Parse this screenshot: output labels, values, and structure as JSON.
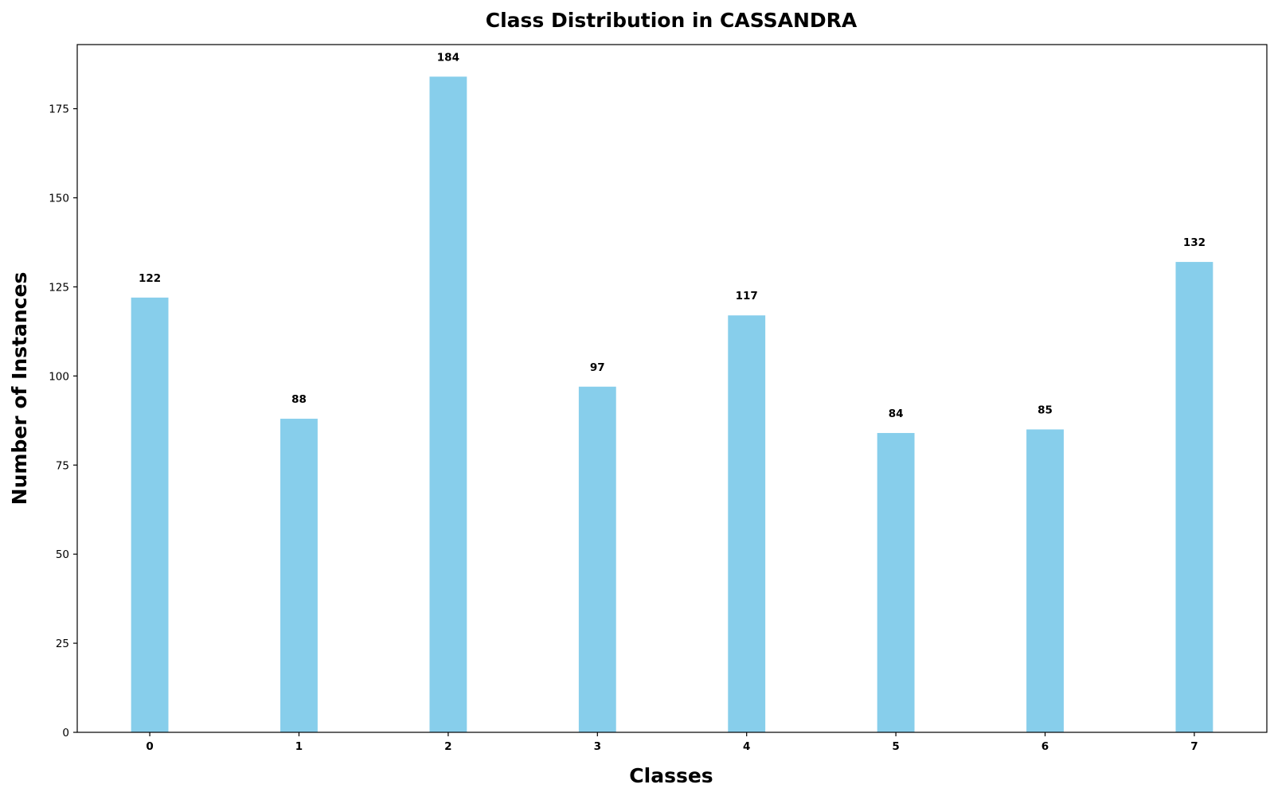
{
  "chart_data": {
    "type": "bar",
    "title": "Class Distribution in CASSANDRA",
    "xlabel": "Classes",
    "ylabel": "Number of Instances",
    "categories": [
      "0",
      "1",
      "2",
      "3",
      "4",
      "5",
      "6",
      "7"
    ],
    "values": [
      122,
      88,
      184,
      97,
      117,
      84,
      85,
      132
    ],
    "data_labels": [
      "122",
      "88",
      "184",
      "97",
      "117",
      "84",
      "85",
      "132"
    ],
    "ylim": [
      0,
      193
    ],
    "yticks": [
      0,
      25,
      50,
      75,
      100,
      125,
      150,
      175
    ],
    "ytick_labels": [
      "0",
      "25",
      "50",
      "75",
      "100",
      "125",
      "150",
      "175"
    ],
    "grid": false,
    "legend": "none",
    "colors": {
      "bar": "#87CEEB",
      "axis": "#000000",
      "text": "#000000",
      "background": "#ffffff"
    }
  }
}
